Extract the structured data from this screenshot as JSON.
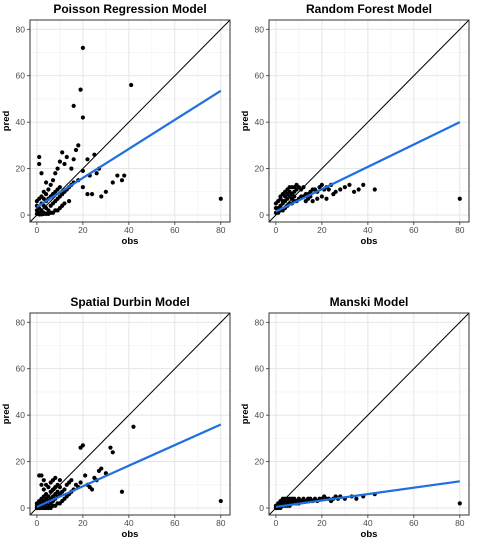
{
  "chart_data": [
    {
      "type": "scatter",
      "title": "Poisson Regression Model",
      "xlabel": "obs",
      "ylabel": "pred",
      "xlim": [
        -3,
        84
      ],
      "ylim": [
        -3,
        84
      ],
      "xticks": [
        "0",
        "20",
        "40",
        "60",
        "80"
      ],
      "yticks": [
        "0",
        "20",
        "40",
        "60",
        "80"
      ],
      "grid": true,
      "reference_line": {
        "slope": 1,
        "intercept": 0,
        "color": "#000000"
      },
      "fit_line": {
        "x": [
          0,
          80
        ],
        "y": [
          3.5,
          53.5
        ],
        "color": "#1f6fe0"
      },
      "points": [
        [
          1,
          1
        ],
        [
          1,
          3
        ],
        [
          2,
          2
        ],
        [
          2,
          5
        ],
        [
          3,
          1
        ],
        [
          3,
          4
        ],
        [
          4,
          3
        ],
        [
          4,
          6
        ],
        [
          5,
          2
        ],
        [
          5,
          7
        ],
        [
          6,
          4
        ],
        [
          6,
          8
        ],
        [
          7,
          5
        ],
        [
          7,
          9
        ],
        [
          8,
          6
        ],
        [
          8,
          10
        ],
        [
          9,
          7
        ],
        [
          9,
          11
        ],
        [
          10,
          8
        ],
        [
          10,
          12
        ],
        [
          11,
          9
        ],
        [
          12,
          10
        ],
        [
          13,
          11
        ],
        [
          14,
          12
        ],
        [
          15,
          13
        ],
        [
          16,
          14
        ],
        [
          5,
          11
        ],
        [
          6,
          13
        ],
        [
          7,
          15
        ],
        [
          8,
          18
        ],
        [
          9,
          20
        ],
        [
          10,
          23
        ],
        [
          11,
          27
        ],
        [
          12,
          22
        ],
        [
          13,
          25
        ],
        [
          15,
          20
        ],
        [
          16,
          24
        ],
        [
          17,
          28
        ],
        [
          3,
          10
        ],
        [
          4,
          14
        ],
        [
          2,
          18
        ],
        [
          1,
          22
        ],
        [
          1,
          25
        ],
        [
          18,
          30
        ],
        [
          20,
          19
        ],
        [
          22,
          24
        ],
        [
          23,
          17
        ],
        [
          25,
          26
        ],
        [
          27,
          20
        ],
        [
          30,
          10
        ],
        [
          33,
          14
        ],
        [
          37,
          15
        ],
        [
          38,
          17
        ],
        [
          35,
          17
        ],
        [
          28,
          8
        ],
        [
          24,
          9
        ],
        [
          20,
          12
        ],
        [
          18,
          15
        ],
        [
          16,
          47
        ],
        [
          19,
          54
        ],
        [
          20,
          42
        ],
        [
          20,
          72
        ],
        [
          41,
          56
        ],
        [
          80,
          7
        ],
        [
          26,
          18
        ],
        [
          22,
          9
        ],
        [
          14,
          6
        ],
        [
          12,
          5
        ],
        [
          11,
          4
        ],
        [
          10,
          3
        ],
        [
          9,
          2
        ],
        [
          8,
          2
        ],
        [
          7,
          1
        ],
        [
          6,
          1
        ],
        [
          5,
          0.5
        ],
        [
          4,
          0.5
        ],
        [
          3,
          0.5
        ],
        [
          2,
          0.3
        ],
        [
          1,
          0.3
        ],
        [
          0,
          0.5
        ],
        [
          0,
          2
        ],
        [
          0,
          4
        ],
        [
          0,
          6
        ],
        [
          1,
          7
        ],
        [
          2,
          8
        ],
        [
          3,
          7
        ],
        [
          4,
          9
        ]
      ]
    },
    {
      "type": "scatter",
      "title": "Random Forest Model",
      "xlabel": "obs",
      "ylabel": "pred",
      "xlim": [
        -3,
        84
      ],
      "ylim": [
        -3,
        84
      ],
      "xticks": [
        "0",
        "20",
        "40",
        "60",
        "80"
      ],
      "yticks": [
        "0",
        "20",
        "40",
        "60",
        "80"
      ],
      "grid": true,
      "reference_line": {
        "slope": 1,
        "intercept": 0,
        "color": "#000000"
      },
      "fit_line": {
        "x": [
          0,
          80
        ],
        "y": [
          1.5,
          40
        ],
        "color": "#1f6fe0"
      },
      "points": [
        [
          1,
          1
        ],
        [
          1,
          3
        ],
        [
          2,
          2
        ],
        [
          2,
          4
        ],
        [
          3,
          2
        ],
        [
          3,
          5
        ],
        [
          4,
          3
        ],
        [
          4,
          6
        ],
        [
          5,
          4
        ],
        [
          5,
          7
        ],
        [
          6,
          5
        ],
        [
          6,
          8
        ],
        [
          7,
          5
        ],
        [
          7,
          9
        ],
        [
          8,
          6
        ],
        [
          8,
          10
        ],
        [
          9,
          6
        ],
        [
          9,
          11
        ],
        [
          10,
          7
        ],
        [
          10,
          12
        ],
        [
          11,
          8
        ],
        [
          12,
          8
        ],
        [
          13,
          9
        ],
        [
          14,
          9
        ],
        [
          15,
          10
        ],
        [
          16,
          11
        ],
        [
          17,
          11
        ],
        [
          18,
          10
        ],
        [
          19,
          12
        ],
        [
          20,
          13
        ],
        [
          21,
          11
        ],
        [
          22,
          12
        ],
        [
          23,
          11
        ],
        [
          24,
          13
        ],
        [
          25,
          9
        ],
        [
          26,
          10
        ],
        [
          28,
          11
        ],
        [
          30,
          12
        ],
        [
          32,
          13
        ],
        [
          34,
          10
        ],
        [
          36,
          11
        ],
        [
          38,
          13
        ],
        [
          43,
          11
        ],
        [
          80,
          7
        ],
        [
          2,
          8
        ],
        [
          3,
          9
        ],
        [
          4,
          10
        ],
        [
          5,
          11
        ],
        [
          6,
          12
        ],
        [
          7,
          12
        ],
        [
          8,
          12
        ],
        [
          9,
          13
        ],
        [
          11,
          11
        ],
        [
          12,
          12
        ],
        [
          13,
          6
        ],
        [
          14,
          7
        ],
        [
          15,
          8
        ],
        [
          16,
          6
        ],
        [
          18,
          7
        ],
        [
          20,
          8
        ],
        [
          22,
          7
        ],
        [
          0,
          1
        ],
        [
          0,
          3
        ],
        [
          0,
          5
        ],
        [
          1,
          6
        ],
        [
          2,
          7
        ],
        [
          3,
          6
        ],
        [
          4,
          8
        ],
        [
          5,
          9
        ],
        [
          6,
          10
        ],
        [
          7,
          7
        ],
        [
          8,
          8
        ]
      ]
    },
    {
      "type": "scatter",
      "title": "Spatial Durbin Model",
      "xlabel": "obs",
      "ylabel": "pred",
      "xlim": [
        -3,
        84
      ],
      "ylim": [
        -3,
        84
      ],
      "xticks": [
        "0",
        "20",
        "40",
        "60",
        "80"
      ],
      "yticks": [
        "0",
        "20",
        "40",
        "60",
        "80"
      ],
      "grid": true,
      "reference_line": {
        "slope": 1,
        "intercept": 0,
        "color": "#000000"
      },
      "fit_line": {
        "x": [
          0,
          80
        ],
        "y": [
          0.5,
          36
        ],
        "color": "#1f6fe0"
      },
      "points": [
        [
          0,
          0
        ],
        [
          0,
          1
        ],
        [
          0,
          2
        ],
        [
          1,
          0
        ],
        [
          1,
          1
        ],
        [
          1,
          2
        ],
        [
          1,
          3
        ],
        [
          2,
          0
        ],
        [
          2,
          1
        ],
        [
          2,
          2
        ],
        [
          2,
          4
        ],
        [
          3,
          0
        ],
        [
          3,
          1
        ],
        [
          3,
          3
        ],
        [
          3,
          5
        ],
        [
          4,
          0
        ],
        [
          4,
          2
        ],
        [
          4,
          4
        ],
        [
          4,
          6
        ],
        [
          5,
          0
        ],
        [
          5,
          1
        ],
        [
          5,
          3
        ],
        [
          5,
          5
        ],
        [
          6,
          0
        ],
        [
          6,
          2
        ],
        [
          6,
          4
        ],
        [
          6,
          7
        ],
        [
          7,
          1
        ],
        [
          7,
          3
        ],
        [
          7,
          5
        ],
        [
          7,
          8
        ],
        [
          8,
          1
        ],
        [
          8,
          4
        ],
        [
          8,
          6
        ],
        [
          8,
          9
        ],
        [
          9,
          2
        ],
        [
          9,
          5
        ],
        [
          9,
          7
        ],
        [
          10,
          2
        ],
        [
          10,
          6
        ],
        [
          10,
          9
        ],
        [
          11,
          3
        ],
        [
          11,
          7
        ],
        [
          12,
          4
        ],
        [
          12,
          8
        ],
        [
          13,
          5
        ],
        [
          13,
          10
        ],
        [
          14,
          6
        ],
        [
          14,
          11
        ],
        [
          15,
          7
        ],
        [
          15,
          12
        ],
        [
          16,
          8
        ],
        [
          17,
          10
        ],
        [
          18,
          9
        ],
        [
          19,
          11
        ],
        [
          20,
          27
        ],
        [
          19,
          26
        ],
        [
          21,
          14
        ],
        [
          22,
          10
        ],
        [
          23,
          9
        ],
        [
          24,
          8
        ],
        [
          25,
          13
        ],
        [
          26,
          12
        ],
        [
          27,
          16
        ],
        [
          28,
          17
        ],
        [
          30,
          15
        ],
        [
          32,
          26
        ],
        [
          33,
          24
        ],
        [
          37,
          7
        ],
        [
          42,
          35
        ],
        [
          80,
          3
        ],
        [
          2,
          14
        ],
        [
          3,
          12
        ],
        [
          4,
          10
        ],
        [
          5,
          9
        ],
        [
          6,
          11
        ],
        [
          7,
          12
        ],
        [
          8,
          13
        ],
        [
          1,
          14
        ],
        [
          2,
          10
        ],
        [
          3,
          8
        ],
        [
          9,
          10
        ],
        [
          10,
          12
        ]
      ]
    },
    {
      "type": "scatter",
      "title": "Manski Model",
      "xlabel": "obs",
      "ylabel": "pred",
      "xlim": [
        -3,
        84
      ],
      "ylim": [
        -3,
        84
      ],
      "xticks": [
        "0",
        "20",
        "40",
        "60",
        "80"
      ],
      "yticks": [
        "0",
        "20",
        "40",
        "60",
        "80"
      ],
      "grid": true,
      "reference_line": {
        "slope": 1,
        "intercept": 0,
        "color": "#000000"
      },
      "fit_line": {
        "x": [
          0,
          80
        ],
        "y": [
          0.5,
          11.5
        ],
        "color": "#1f6fe0"
      },
      "points": [
        [
          0,
          0
        ],
        [
          0,
          1
        ],
        [
          1,
          0
        ],
        [
          1,
          1
        ],
        [
          1,
          2
        ],
        [
          2,
          0
        ],
        [
          2,
          1
        ],
        [
          2,
          2
        ],
        [
          3,
          1
        ],
        [
          3,
          2
        ],
        [
          3,
          3
        ],
        [
          4,
          1
        ],
        [
          4,
          2
        ],
        [
          4,
          3
        ],
        [
          5,
          1
        ],
        [
          5,
          2
        ],
        [
          5,
          3
        ],
        [
          6,
          1
        ],
        [
          6,
          2
        ],
        [
          6,
          3
        ],
        [
          7,
          2
        ],
        [
          7,
          3
        ],
        [
          8,
          2
        ],
        [
          8,
          3
        ],
        [
          8,
          4
        ],
        [
          9,
          2
        ],
        [
          9,
          3
        ],
        [
          10,
          2
        ],
        [
          10,
          3
        ],
        [
          10,
          4
        ],
        [
          11,
          3
        ],
        [
          12,
          3
        ],
        [
          12,
          4
        ],
        [
          13,
          3
        ],
        [
          14,
          3
        ],
        [
          14,
          4
        ],
        [
          15,
          4
        ],
        [
          16,
          3
        ],
        [
          17,
          4
        ],
        [
          18,
          3
        ],
        [
          19,
          4
        ],
        [
          20,
          4
        ],
        [
          21,
          5
        ],
        [
          22,
          4
        ],
        [
          23,
          4
        ],
        [
          24,
          3
        ],
        [
          25,
          4
        ],
        [
          26,
          5
        ],
        [
          27,
          4
        ],
        [
          28,
          5
        ],
        [
          30,
          4
        ],
        [
          33,
          5
        ],
        [
          35,
          4
        ],
        [
          38,
          5
        ],
        [
          43,
          6
        ],
        [
          80,
          2
        ],
        [
          2,
          3
        ],
        [
          3,
          4
        ],
        [
          4,
          4
        ],
        [
          5,
          4
        ],
        [
          6,
          4
        ],
        [
          7,
          4
        ]
      ]
    }
  ]
}
